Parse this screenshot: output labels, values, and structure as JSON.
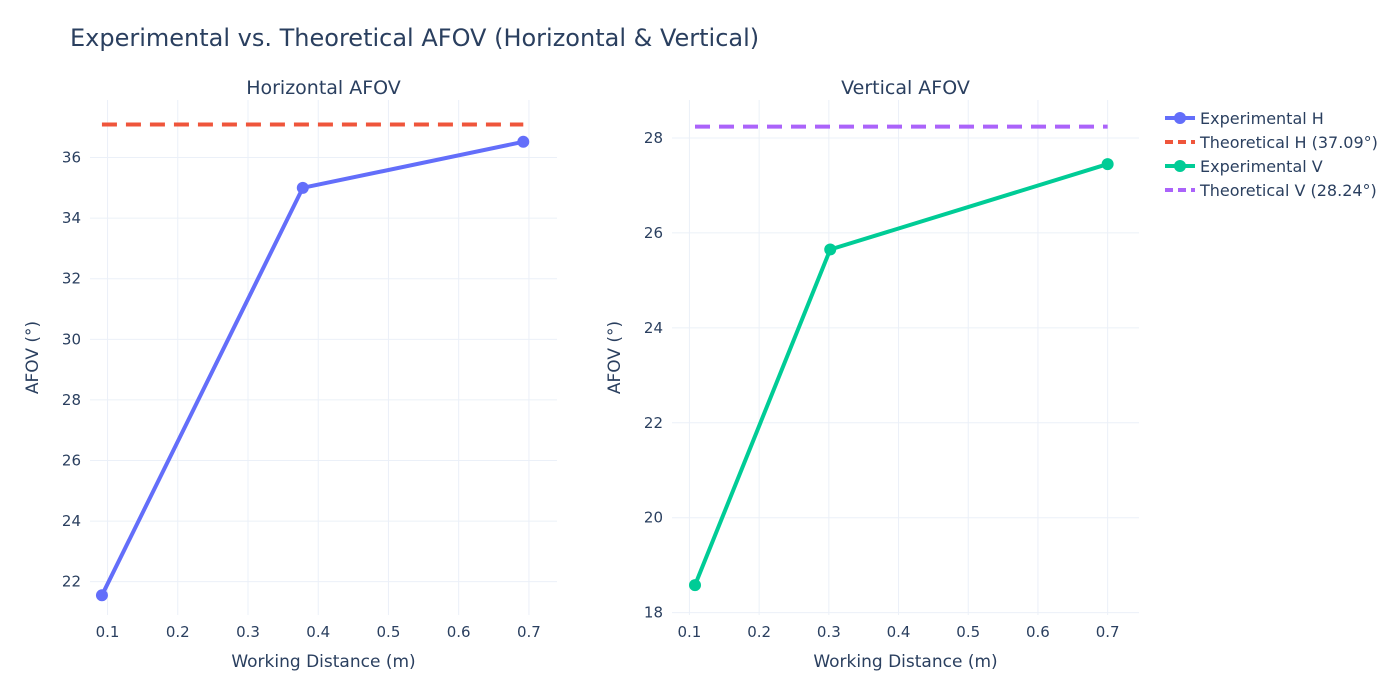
{
  "title": "Experimental vs. Theoretical AFOV (Horizontal & Vertical)",
  "colors": {
    "exp_h": "#636efa",
    "theo_h": "#ef553b",
    "exp_v": "#00cc96",
    "theo_v": "#ab63fa",
    "text": "#2a3f5f",
    "grid": "#ebf0f8"
  },
  "legend": [
    {
      "label": "Experimental H",
      "style": "line-marker",
      "color_key": "exp_h"
    },
    {
      "label": "Theoretical H (37.09°)",
      "style": "dash",
      "color_key": "theo_h"
    },
    {
      "label": "Experimental V",
      "style": "line-marker",
      "color_key": "exp_v"
    },
    {
      "label": "Theoretical V (28.24°)",
      "style": "dash",
      "color_key": "theo_v"
    }
  ],
  "chart_data": [
    {
      "type": "line",
      "title": "Horizontal AFOV",
      "xlabel": "Working Distance (m)",
      "ylabel": "AFOV (°)",
      "xlim": [
        0.075,
        0.74
      ],
      "ylim": [
        20.9,
        37.9
      ],
      "xticks": [
        0.1,
        0.2,
        0.3,
        0.4,
        0.5,
        0.6,
        0.7
      ],
      "xtick_labels": [
        "0.1",
        "0.2",
        "0.3",
        "0.4",
        "0.5",
        "0.6",
        "0.7"
      ],
      "yticks": [
        22,
        24,
        26,
        28,
        30,
        32,
        34,
        36
      ],
      "ytick_labels": [
        "22",
        "24",
        "26",
        "28",
        "30",
        "32",
        "34",
        "36"
      ],
      "grid": true,
      "series": [
        {
          "name": "Experimental H",
          "style": "line-marker",
          "color_key": "exp_h",
          "x": [
            0.092,
            0.378,
            0.692
          ],
          "y": [
            21.55,
            35.0,
            36.52
          ]
        },
        {
          "name": "Theoretical H (37.09°)",
          "style": "dash",
          "color_key": "theo_h",
          "x": [
            0.092,
            0.692
          ],
          "y": [
            37.09,
            37.09
          ]
        }
      ]
    },
    {
      "type": "line",
      "title": "Vertical AFOV",
      "xlabel": "Working Distance (m)",
      "ylabel": "AFOV (°)",
      "xlim": [
        0.075,
        0.745
      ],
      "ylim": [
        17.95,
        28.8
      ],
      "xticks": [
        0.1,
        0.2,
        0.3,
        0.4,
        0.5,
        0.6,
        0.7
      ],
      "xtick_labels": [
        "0.1",
        "0.2",
        "0.3",
        "0.4",
        "0.5",
        "0.6",
        "0.7"
      ],
      "yticks": [
        18,
        20,
        22,
        24,
        26,
        28
      ],
      "ytick_labels": [
        "18",
        "20",
        "22",
        "24",
        "26",
        "28"
      ],
      "grid": true,
      "series": [
        {
          "name": "Experimental V",
          "style": "line-marker",
          "color_key": "exp_v",
          "x": [
            0.108,
            0.302,
            0.7
          ],
          "y": [
            18.58,
            25.65,
            27.45
          ]
        },
        {
          "name": "Theoretical V (28.24°)",
          "style": "dash",
          "color_key": "theo_v",
          "x": [
            0.108,
            0.7
          ],
          "y": [
            28.24,
            28.24
          ]
        }
      ]
    }
  ]
}
